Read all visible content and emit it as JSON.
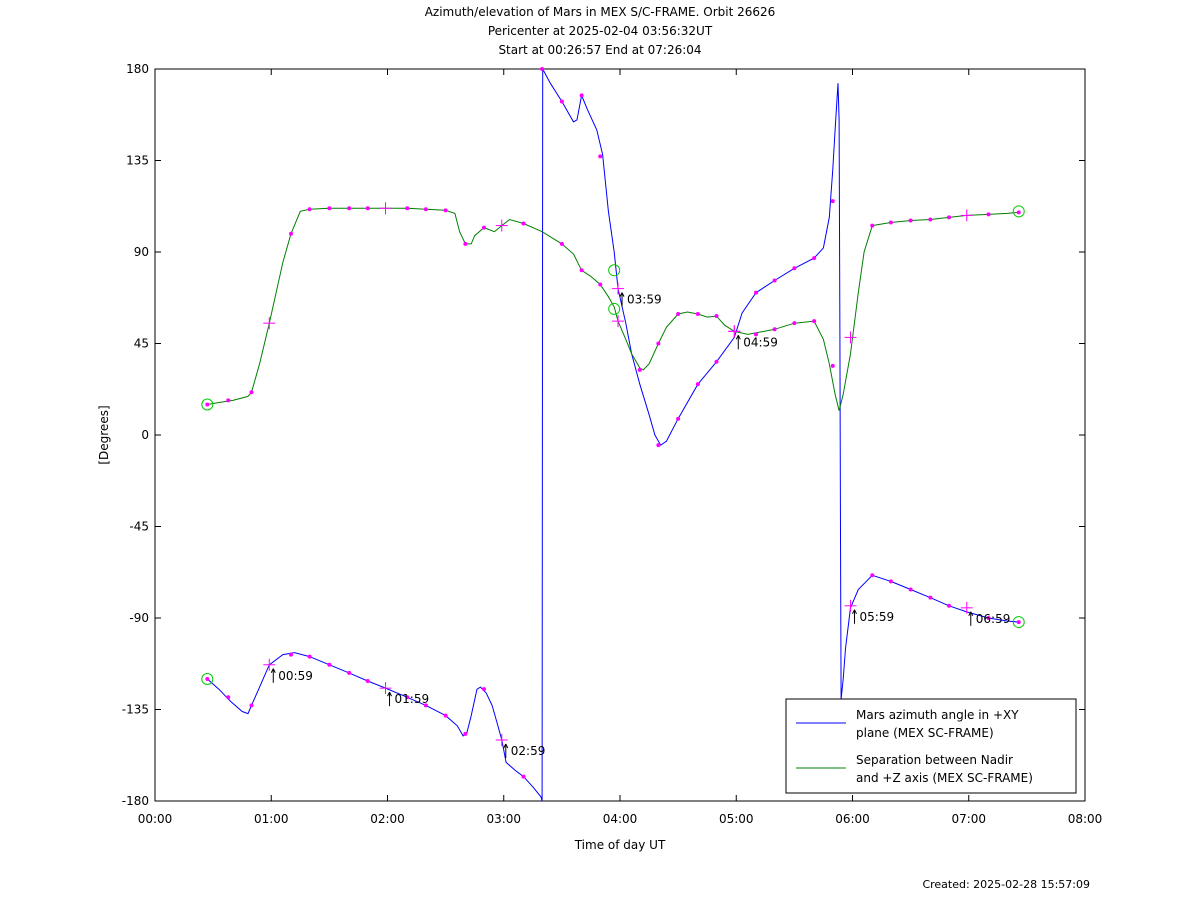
{
  "chart_data": {
    "type": "line",
    "title": [
      "Azimuth/elevation of Mars in MEX S/C-FRAME.  Orbit 26626",
      "Pericenter at 2025-02-04 03:56:32UT",
      "Start at 00:26:57 End at 07:26:04"
    ],
    "xlabel": "Time of day UT",
    "ylabel": "[Degrees]",
    "xlim": [
      0,
      8
    ],
    "ylim": [
      -180,
      180
    ],
    "x_ticks": [
      "00:00",
      "01:00",
      "02:00",
      "03:00",
      "04:00",
      "05:00",
      "06:00",
      "07:00",
      "08:00"
    ],
    "y_ticks": [
      180,
      135,
      90,
      45,
      0,
      -45,
      -90,
      -135,
      -180
    ],
    "grid": false,
    "legend_placement": "bottom-right",
    "series": [
      {
        "name": "Mars azimuth angle in +XY plane (MEX SC-FRAME)",
        "color": "#0000ff",
        "points": [
          [
            0.45,
            -120
          ],
          [
            0.55,
            -125
          ],
          [
            0.65,
            -131
          ],
          [
            0.75,
            -136
          ],
          [
            0.8,
            -137
          ],
          [
            0.83,
            -133
          ],
          [
            0.9,
            -124
          ],
          [
            0.983,
            -113
          ],
          [
            1.1,
            -108
          ],
          [
            1.2,
            -107
          ],
          [
            1.33,
            -109
          ],
          [
            1.5,
            -113
          ],
          [
            1.67,
            -117
          ],
          [
            1.83,
            -121
          ],
          [
            1.983,
            -124.5
          ],
          [
            2.17,
            -129
          ],
          [
            2.33,
            -133
          ],
          [
            2.5,
            -138
          ],
          [
            2.6,
            -143
          ],
          [
            2.65,
            -148
          ],
          [
            2.68,
            -147
          ],
          [
            2.72,
            -138
          ],
          [
            2.77,
            -125
          ],
          [
            2.8,
            -124
          ],
          [
            2.85,
            -127
          ],
          [
            2.9,
            -133
          ],
          [
            2.95,
            -143
          ],
          [
            2.983,
            -150
          ],
          [
            3.02,
            -161
          ],
          [
            3.1,
            -165
          ],
          [
            3.17,
            -168
          ],
          [
            3.25,
            -173
          ],
          [
            3.32,
            -178
          ],
          [
            3.33,
            -180
          ],
          [
            3.335,
            180
          ],
          [
            3.4,
            173
          ],
          [
            3.5,
            164
          ],
          [
            3.6,
            154
          ],
          [
            3.63,
            155
          ],
          [
            3.67,
            167
          ],
          [
            3.72,
            160
          ],
          [
            3.8,
            150
          ],
          [
            3.85,
            138
          ],
          [
            3.9,
            110
          ],
          [
            3.95,
            90
          ],
          [
            3.983,
            72
          ],
          [
            4.05,
            55
          ],
          [
            4.1,
            40
          ],
          [
            4.17,
            25
          ],
          [
            4.25,
            10
          ],
          [
            4.3,
            0
          ],
          [
            4.35,
            -5
          ],
          [
            4.4,
            -3
          ],
          [
            4.5,
            8
          ],
          [
            4.67,
            25
          ],
          [
            4.83,
            36
          ],
          [
            4.983,
            48
          ],
          [
            5.05,
            60
          ],
          [
            5.17,
            70
          ],
          [
            5.33,
            76
          ],
          [
            5.5,
            82
          ],
          [
            5.67,
            87
          ],
          [
            5.75,
            92
          ],
          [
            5.8,
            107
          ],
          [
            5.83,
            130
          ],
          [
            5.85,
            150
          ],
          [
            5.875,
            173
          ],
          [
            5.885,
            155
          ],
          [
            5.892,
            50
          ],
          [
            5.897,
            -50
          ],
          [
            5.902,
            -130
          ],
          [
            5.92,
            -120
          ],
          [
            5.94,
            -105
          ],
          [
            5.983,
            -85
          ],
          [
            6.05,
            -76
          ],
          [
            6.17,
            -69
          ],
          [
            6.33,
            -72
          ],
          [
            6.5,
            -76
          ],
          [
            6.67,
            -80
          ],
          [
            6.83,
            -84
          ],
          [
            6.983,
            -87
          ],
          [
            7.17,
            -90
          ],
          [
            7.33,
            -91.5
          ],
          [
            7.43,
            -92
          ]
        ]
      },
      {
        "name": "Separation between Nadir and +Z axis (MEX SC-FRAME)",
        "color": "#008000",
        "points": [
          [
            0.45,
            15
          ],
          [
            0.55,
            16
          ],
          [
            0.67,
            17
          ],
          [
            0.8,
            19
          ],
          [
            0.83,
            21
          ],
          [
            0.9,
            35
          ],
          [
            0.983,
            55
          ],
          [
            1.1,
            85
          ],
          [
            1.17,
            99
          ],
          [
            1.25,
            110
          ],
          [
            1.33,
            111
          ],
          [
            1.5,
            111.5
          ],
          [
            1.67,
            111.5
          ],
          [
            1.83,
            111.5
          ],
          [
            1.983,
            111.5
          ],
          [
            2.17,
            111.5
          ],
          [
            2.33,
            111
          ],
          [
            2.5,
            110.5
          ],
          [
            2.58,
            109
          ],
          [
            2.62,
            100
          ],
          [
            2.67,
            94
          ],
          [
            2.72,
            94
          ],
          [
            2.75,
            98
          ],
          [
            2.83,
            102
          ],
          [
            2.92,
            100
          ],
          [
            2.983,
            103
          ],
          [
            3.05,
            106
          ],
          [
            3.17,
            104
          ],
          [
            3.33,
            100
          ],
          [
            3.5,
            94
          ],
          [
            3.6,
            89
          ],
          [
            3.67,
            81
          ],
          [
            3.75,
            78
          ],
          [
            3.83,
            74
          ],
          [
            3.9,
            68
          ],
          [
            3.95,
            63
          ],
          [
            3.983,
            56
          ],
          [
            4.05,
            47
          ],
          [
            4.1,
            40
          ],
          [
            4.17,
            33
          ],
          [
            4.2,
            32
          ],
          [
            4.25,
            35
          ],
          [
            4.33,
            45
          ],
          [
            4.4,
            53
          ],
          [
            4.5,
            59.5
          ],
          [
            4.58,
            60.5
          ],
          [
            4.67,
            59.5
          ],
          [
            4.75,
            58
          ],
          [
            4.83,
            58.5
          ],
          [
            4.9,
            54
          ],
          [
            4.983,
            51
          ],
          [
            5.1,
            49.5
          ],
          [
            5.33,
            52
          ],
          [
            5.5,
            55
          ],
          [
            5.67,
            56
          ],
          [
            5.75,
            47
          ],
          [
            5.8,
            35
          ],
          [
            5.85,
            20
          ],
          [
            5.885,
            12
          ],
          [
            5.92,
            20
          ],
          [
            5.983,
            40
          ],
          [
            6.05,
            70
          ],
          [
            6.1,
            90
          ],
          [
            6.17,
            103
          ],
          [
            6.33,
            104.5
          ],
          [
            6.5,
            105.5
          ],
          [
            6.67,
            106
          ],
          [
            6.83,
            107
          ],
          [
            6.983,
            108
          ],
          [
            7.17,
            108.5
          ],
          [
            7.33,
            109
          ],
          [
            7.43,
            109.5
          ]
        ]
      }
    ],
    "markers": {
      "dot_color": "#ff00ff",
      "circle_color": "#00cc00",
      "dots": [
        [
          0.45,
          -120
        ],
        [
          0.63,
          -129
        ],
        [
          0.83,
          -133
        ],
        [
          1.17,
          -108
        ],
        [
          1.33,
          -109
        ],
        [
          1.5,
          -113
        ],
        [
          1.67,
          -117
        ],
        [
          1.83,
          -121
        ],
        [
          2.17,
          -129
        ],
        [
          2.33,
          -133
        ],
        [
          2.5,
          -138
        ],
        [
          2.67,
          -147
        ],
        [
          2.83,
          -125
        ],
        [
          3.17,
          -168
        ],
        [
          3.33,
          180
        ],
        [
          3.5,
          164
        ],
        [
          3.67,
          167
        ],
        [
          3.83,
          137
        ],
        [
          4.33,
          -5
        ],
        [
          4.5,
          8
        ],
        [
          4.67,
          25
        ],
        [
          4.83,
          36
        ],
        [
          5.17,
          70
        ],
        [
          5.33,
          76
        ],
        [
          5.5,
          82
        ],
        [
          5.67,
          87
        ],
        [
          5.83,
          115
        ],
        [
          6.17,
          -69
        ],
        [
          6.33,
          -72
        ],
        [
          6.5,
          -76
        ],
        [
          6.67,
          -80
        ],
        [
          6.83,
          -84
        ],
        [
          7.17,
          -90
        ],
        [
          7.43,
          -92
        ],
        [
          0.45,
          15
        ],
        [
          0.63,
          17
        ],
        [
          0.83,
          21
        ],
        [
          1.17,
          99
        ],
        [
          1.33,
          111
        ],
        [
          1.5,
          111.5
        ],
        [
          1.67,
          111.5
        ],
        [
          1.83,
          111.5
        ],
        [
          2.17,
          111.5
        ],
        [
          2.33,
          111
        ],
        [
          2.5,
          110.5
        ],
        [
          2.67,
          94
        ],
        [
          2.83,
          102
        ],
        [
          3.17,
          104
        ],
        [
          3.5,
          94
        ],
        [
          3.67,
          81
        ],
        [
          3.83,
          74
        ],
        [
          4.17,
          32
        ],
        [
          4.33,
          45
        ],
        [
          4.5,
          59.5
        ],
        [
          4.67,
          59.5
        ],
        [
          4.83,
          58.5
        ],
        [
          5.17,
          49.5
        ],
        [
          5.33,
          52
        ],
        [
          5.5,
          55
        ],
        [
          5.67,
          56
        ],
        [
          5.83,
          34
        ],
        [
          6.17,
          103
        ],
        [
          6.33,
          104.5
        ],
        [
          6.5,
          105.5
        ],
        [
          6.67,
          106
        ],
        [
          6.83,
          107
        ],
        [
          7.17,
          108.5
        ],
        [
          7.43,
          109.5
        ]
      ],
      "crosses": [
        [
          0.983,
          -113
        ],
        [
          1.983,
          -124.5
        ],
        [
          2.983,
          -150
        ],
        [
          3.983,
          72
        ],
        [
          4.983,
          51
        ],
        [
          5.983,
          -84
        ],
        [
          6.983,
          -85
        ],
        [
          0.983,
          55
        ],
        [
          1.983,
          111.5
        ],
        [
          2.983,
          103
        ],
        [
          3.983,
          56
        ],
        [
          4.983,
          51
        ],
        [
          5.983,
          48
        ],
        [
          6.983,
          108
        ]
      ],
      "circles": [
        [
          0.45,
          -120
        ],
        [
          0.45,
          15
        ],
        [
          3.95,
          81
        ],
        [
          3.95,
          62
        ],
        [
          7.43,
          -92
        ],
        [
          7.43,
          110
        ]
      ]
    },
    "annotations": [
      {
        "x": 0.983,
        "y": -113,
        "text": "00:59"
      },
      {
        "x": 1.983,
        "y": -124.5,
        "text": "01:59"
      },
      {
        "x": 2.983,
        "y": -150,
        "text": "02:59"
      },
      {
        "x": 3.983,
        "y": 72,
        "text": "03:59"
      },
      {
        "x": 4.983,
        "y": 51,
        "text": "04:59"
      },
      {
        "x": 5.983,
        "y": -84,
        "text": "05:59"
      },
      {
        "x": 6.983,
        "y": -85,
        "text": "06:59"
      }
    ],
    "legend": [
      {
        "line1": "Mars azimuth angle in +XY",
        "line2": "plane (MEX SC-FRAME)",
        "color": "#0000ff"
      },
      {
        "line1": "Separation between Nadir",
        "line2": "and +Z axis (MEX SC-FRAME)",
        "color": "#008000"
      }
    ]
  },
  "footer": {
    "created": "Created: 2025-02-28 15:57:09"
  }
}
